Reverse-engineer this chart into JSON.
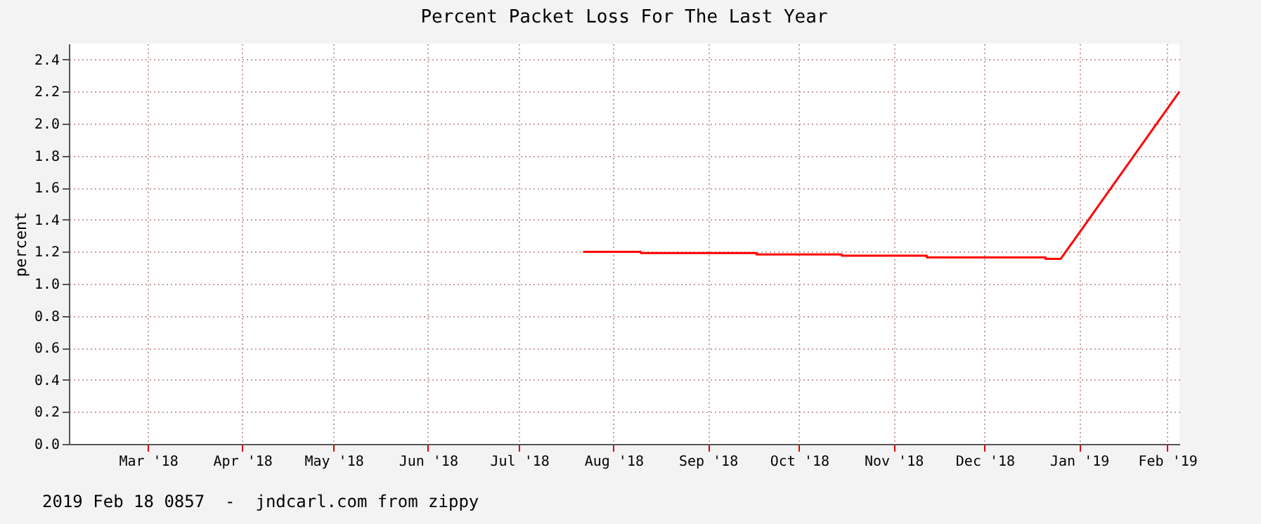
{
  "chart_data": {
    "type": "line",
    "title": "Percent Packet Loss For The Last Year",
    "ylabel": "percent",
    "x": [
      "2018-08-06",
      "2018-08-25",
      "2018-08-25",
      "2018-10-02",
      "2018-10-02",
      "2018-10-30",
      "2018-10-30",
      "2018-11-27",
      "2018-11-27",
      "2019-01-05",
      "2019-01-05",
      "2019-01-10",
      "2019-02-18"
    ],
    "series": [
      {
        "color": "#ff0000",
        "values": [
          1.2,
          1.2,
          1.192,
          1.192,
          1.183,
          1.183,
          1.175,
          1.175,
          1.164,
          1.164,
          1.156,
          1.156,
          2.2
        ]
      }
    ],
    "xlim": [
      "2018-02-18",
      "2019-02-18"
    ],
    "xticks": [
      {
        "value": "2018-03-16",
        "label": "Mar '18"
      },
      {
        "value": "2018-04-16",
        "label": "Apr '18"
      },
      {
        "value": "2018-05-16",
        "label": "May '18"
      },
      {
        "value": "2018-06-16",
        "label": "Jun '18"
      },
      {
        "value": "2018-07-16",
        "label": "Jul '18"
      },
      {
        "value": "2018-08-16",
        "label": "Aug '18"
      },
      {
        "value": "2018-09-16",
        "label": "Sep '18"
      },
      {
        "value": "2018-10-16",
        "label": "Oct '18"
      },
      {
        "value": "2018-11-16",
        "label": "Nov '18"
      },
      {
        "value": "2018-12-16",
        "label": "Dec '18"
      },
      {
        "value": "2019-01-16",
        "label": "Jan '19"
      },
      {
        "value": "2019-02-14",
        "label": "Feb '19"
      }
    ],
    "ylim": [
      0,
      2.5
    ],
    "yticks": [
      {
        "value": 0,
        "label": "0.0"
      },
      {
        "value": 0.2,
        "label": "0.2"
      },
      {
        "value": 0.4,
        "label": "0.4"
      },
      {
        "value": 0.6,
        "label": "0.6"
      },
      {
        "value": 0.8,
        "label": "0.8"
      },
      {
        "value": 1,
        "label": "1.0"
      },
      {
        "value": 1.2,
        "label": "1.2"
      },
      {
        "value": 1.4,
        "label": "1.4"
      },
      {
        "value": 1.6,
        "label": "1.6"
      },
      {
        "value": 1.8,
        "label": "1.8"
      },
      {
        "value": 2,
        "label": "2.0"
      },
      {
        "value": 2.2,
        "label": "2.2"
      },
      {
        "value": 2.4,
        "label": "2.4"
      }
    ],
    "grid": true,
    "annotations": [
      "2019 Feb 18 0857  -  jndcarl.com from zippy"
    ]
  }
}
